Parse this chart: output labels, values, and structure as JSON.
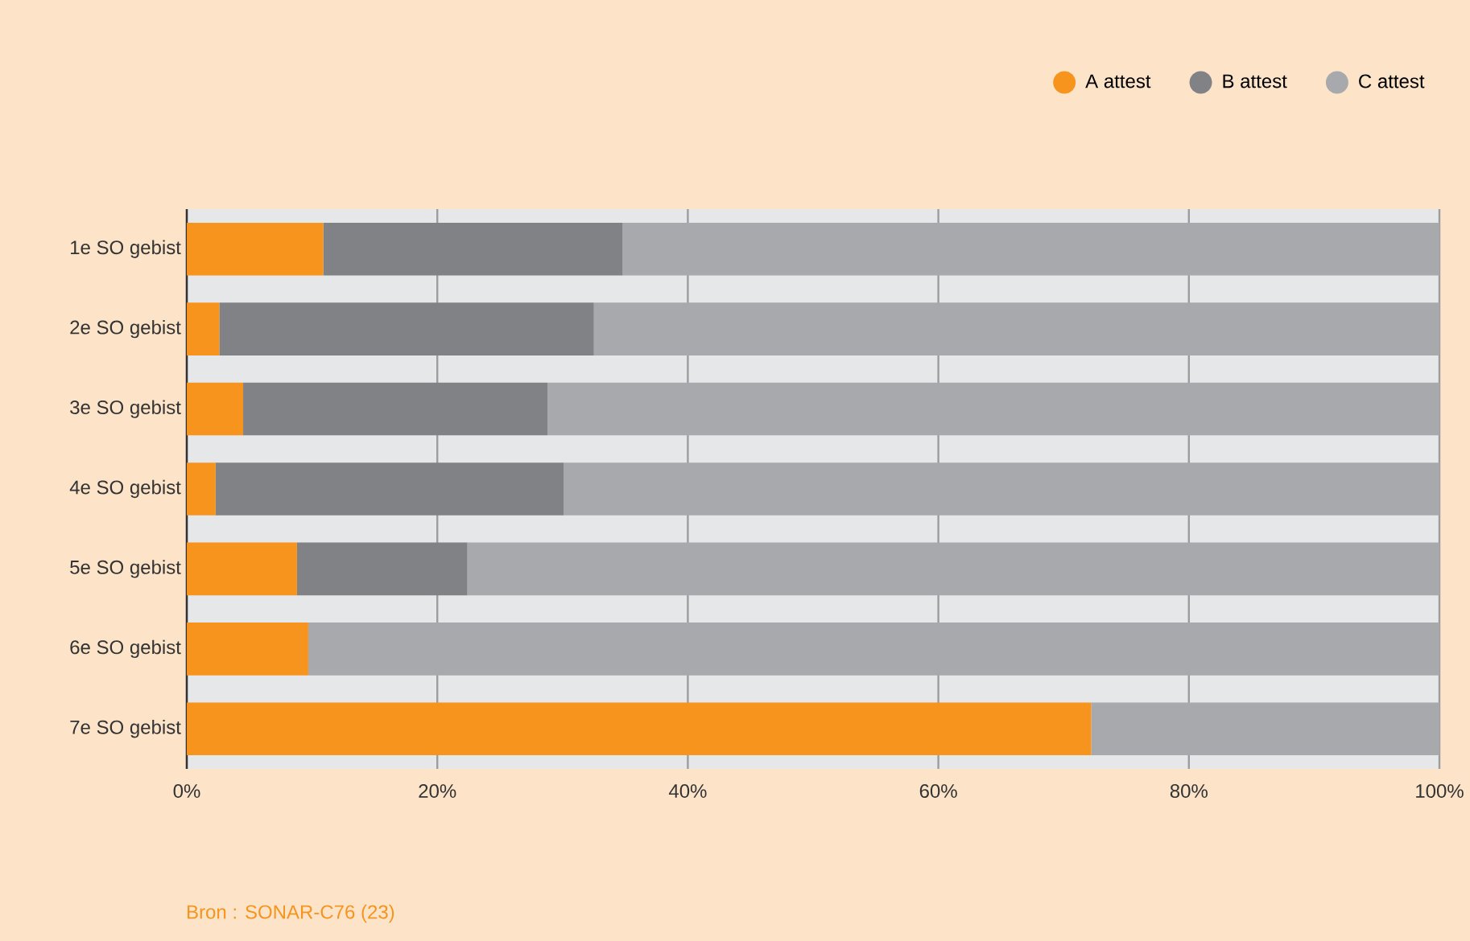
{
  "chart_data": {
    "type": "bar",
    "orientation": "horizontal",
    "stacked": true,
    "categories": [
      "1e SO gebist",
      "2e SO gebist",
      "3e SO gebist",
      "4e SO gebist",
      "5e SO gebist",
      "6e SO gebist",
      "7e SO gebist"
    ],
    "series": [
      {
        "name": "A attest",
        "color": "#f7941d",
        "values": [
          10.9,
          2.6,
          4.5,
          2.3,
          8.8,
          9.7,
          72.2
        ]
      },
      {
        "name": "B attest",
        "color": "#808285",
        "values": [
          23.9,
          29.9,
          24.3,
          27.8,
          13.6,
          0,
          0
        ]
      },
      {
        "name": "C attest",
        "color": "#a7a9ac",
        "values": [
          65.2,
          67.5,
          71.2,
          69.9,
          77.6,
          90.3,
          27.8
        ]
      }
    ],
    "xlim": [
      0,
      100
    ],
    "xticks": [
      {
        "value": 0,
        "label": "0%"
      },
      {
        "value": 20,
        "label": "20%"
      },
      {
        "value": 40,
        "label": "40%"
      },
      {
        "value": 60,
        "label": "60%"
      },
      {
        "value": 80,
        "label": "80%"
      },
      {
        "value": 100,
        "label": "100%"
      }
    ],
    "grid": "x",
    "legend": "top right",
    "annotations": [
      "Bron : SONAR-C76 (23)"
    ]
  }
}
